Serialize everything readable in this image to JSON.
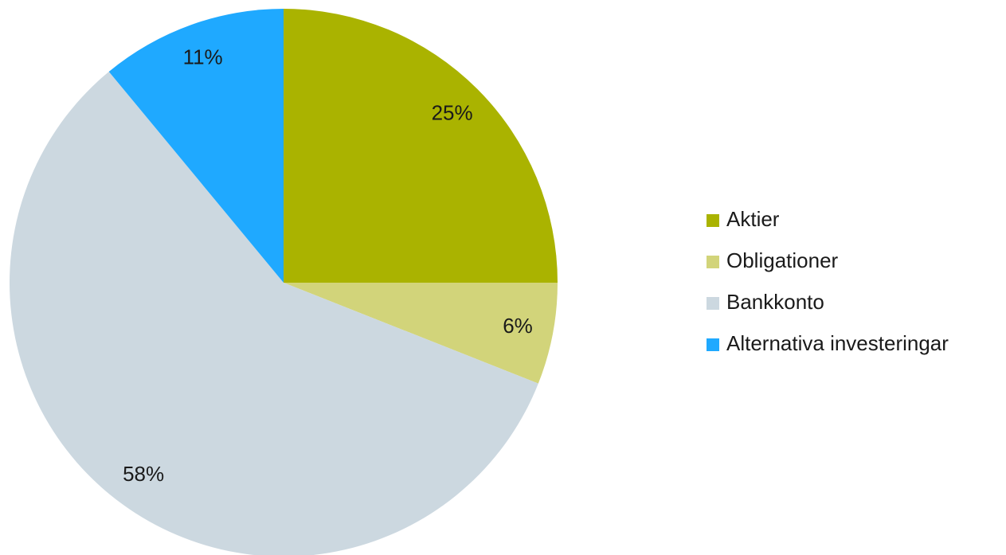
{
  "chart_data": {
    "type": "pie",
    "categories": [
      "Aktier",
      "Obligationer",
      "Bankkonto",
      "Alternativa investeringar"
    ],
    "values": [
      25,
      6,
      58,
      11
    ],
    "value_labels": [
      "25%",
      "6%",
      "58%",
      "11%"
    ],
    "colors": [
      "#aab300",
      "#d2d47a",
      "#ccd8e0",
      "#1fa9ff"
    ],
    "legend": "right"
  }
}
